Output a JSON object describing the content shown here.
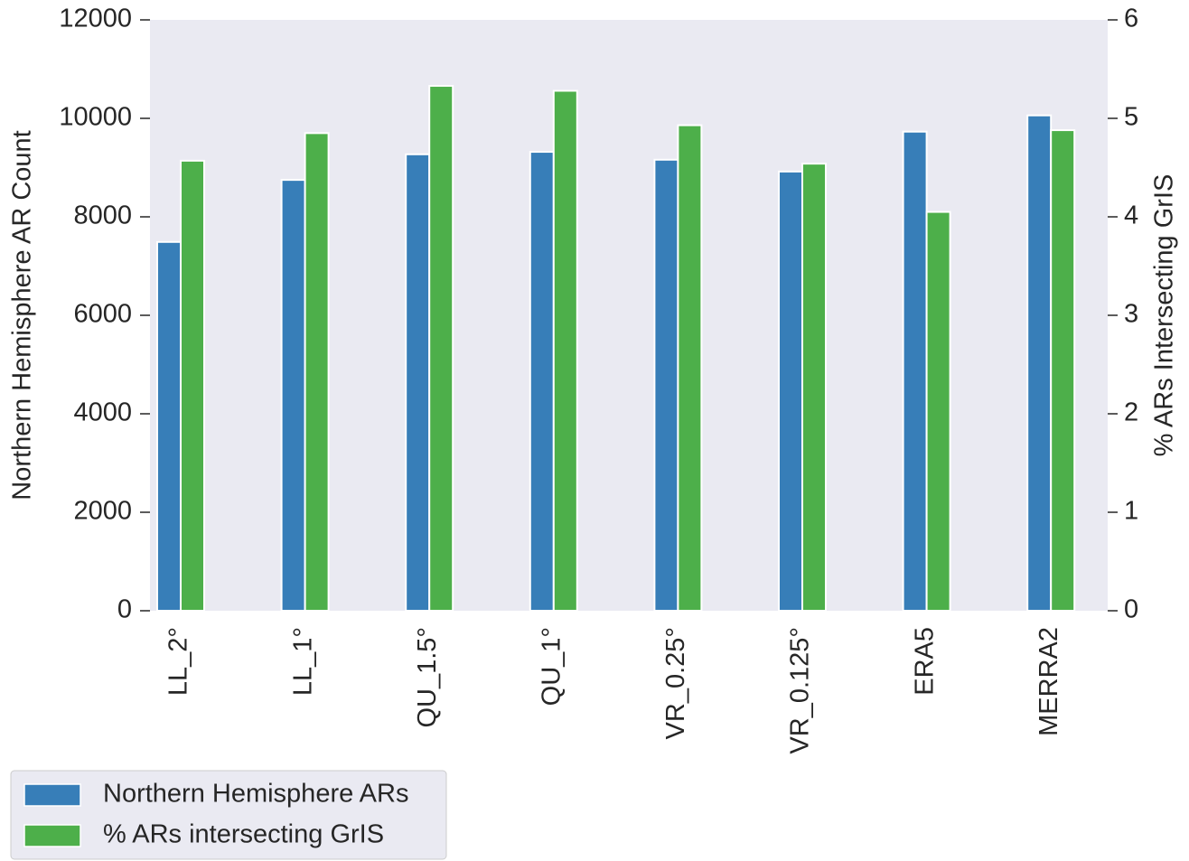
{
  "chart_data": {
    "type": "bar",
    "y_label": "Northern Hemisphere AR Count",
    "y2_label": "% ARs Intersecting GrIS",
    "categories": [
      "LL_2°",
      "LL_1°",
      "QU_1.5°",
      "QU_1°",
      "VR_0.25°",
      "VR_0.125°",
      "ERA5",
      "MERRA2"
    ],
    "series": [
      {
        "name": "Northern Hemisphere ARs",
        "color": "#377eb8",
        "values": [
          7490,
          8750,
          9270,
          9320,
          9160,
          8920,
          9730,
          10060
        ]
      },
      {
        "name": "% ARs intersecting GrIS",
        "color": "#4daf4a",
        "axis": "y2",
        "values": [
          4.57,
          4.85,
          5.33,
          5.28,
          4.93,
          4.54,
          4.05,
          4.88
        ]
      }
    ],
    "ylim": [
      0,
      12000
    ],
    "yticks": [
      0,
      2000,
      4000,
      6000,
      8000,
      10000,
      12000
    ],
    "y2lim": [
      0,
      6
    ],
    "y2ticks": [
      0,
      1,
      2,
      3,
      4,
      5,
      6
    ],
    "grid": false,
    "legend_position": "bottom-left"
  }
}
